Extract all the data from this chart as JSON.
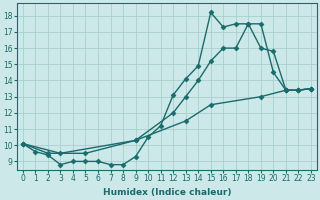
{
  "bg_color": "#cce8e8",
  "grid_color": "#aacece",
  "line_color": "#1a6b6b",
  "marker": "D",
  "marker_size": 2.5,
  "line_width": 1.0,
  "xlabel": "Humidex (Indice chaleur)",
  "xlim": [
    -0.5,
    23.5
  ],
  "ylim": [
    8.5,
    18.8
  ],
  "xticks": [
    0,
    1,
    2,
    3,
    4,
    5,
    6,
    7,
    8,
    9,
    10,
    11,
    12,
    13,
    14,
    15,
    16,
    17,
    18,
    19,
    20,
    21,
    22,
    23
  ],
  "yticks": [
    9,
    10,
    11,
    12,
    13,
    14,
    15,
    16,
    17,
    18
  ],
  "series_A": [
    [
      0,
      10.1
    ],
    [
      3,
      9.5
    ],
    [
      9,
      10.3
    ],
    [
      13,
      11.5
    ],
    [
      15,
      12.5
    ],
    [
      19,
      13.0
    ],
    [
      21,
      13.4
    ],
    [
      22,
      13.4
    ],
    [
      23,
      13.5
    ]
  ],
  "series_B": [
    [
      0,
      10.1
    ],
    [
      2,
      9.5
    ],
    [
      5,
      9.5
    ],
    [
      9,
      10.3
    ],
    [
      12,
      12.0
    ],
    [
      13,
      13.0
    ],
    [
      14,
      14.0
    ],
    [
      15,
      15.2
    ],
    [
      16,
      16.0
    ],
    [
      17,
      16.0
    ],
    [
      18,
      17.5
    ],
    [
      19,
      16.0
    ],
    [
      20,
      15.8
    ],
    [
      21,
      13.4
    ],
    [
      22,
      13.4
    ],
    [
      23,
      13.5
    ]
  ],
  "series_C": [
    [
      0,
      10.1
    ],
    [
      1,
      9.6
    ],
    [
      2,
      9.4
    ],
    [
      3,
      8.8
    ],
    [
      4,
      9.0
    ],
    [
      5,
      9.0
    ],
    [
      6,
      9.0
    ],
    [
      7,
      8.8
    ],
    [
      8,
      8.8
    ],
    [
      9,
      9.3
    ],
    [
      10,
      10.5
    ],
    [
      11,
      11.2
    ],
    [
      12,
      13.1
    ],
    [
      13,
      14.1
    ],
    [
      14,
      14.9
    ],
    [
      15,
      18.2
    ],
    [
      16,
      17.3
    ],
    [
      17,
      17.5
    ],
    [
      18,
      17.5
    ],
    [
      19,
      17.5
    ],
    [
      20,
      14.5
    ],
    [
      21,
      13.4
    ],
    [
      22,
      13.4
    ],
    [
      23,
      13.5
    ]
  ]
}
